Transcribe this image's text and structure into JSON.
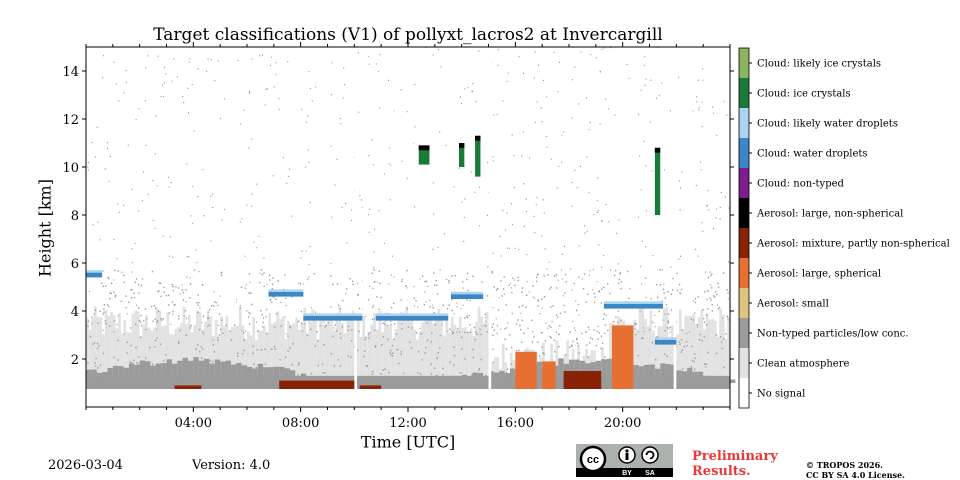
{
  "chart_data": {
    "type": "heatmap",
    "title": "Target classifications (V1) of pollyxt_lacros2 at Invercargill",
    "xlabel": "Time [UTC]",
    "ylabel": "Height [km]",
    "xlim_hours": [
      0,
      24
    ],
    "ylim_km": [
      0,
      15
    ],
    "x_ticks": [
      {
        "hour": 4,
        "label": "04:00"
      },
      {
        "hour": 8,
        "label": "08:00"
      },
      {
        "hour": 12,
        "label": "12:00"
      },
      {
        "hour": 16,
        "label": "16:00"
      },
      {
        "hour": 20,
        "label": "20:00"
      }
    ],
    "y_ticks": [
      {
        "value": 2,
        "label": "2"
      },
      {
        "value": 4,
        "label": "4"
      },
      {
        "value": 6,
        "label": "6"
      },
      {
        "value": 8,
        "label": "8"
      },
      {
        "value": 10,
        "label": "10"
      },
      {
        "value": 12,
        "label": "12"
      },
      {
        "value": 14,
        "label": "14"
      }
    ],
    "classes": [
      {
        "id": 11,
        "label": "Cloud: likely ice crystals",
        "color": "#8ab45f"
      },
      {
        "id": 10,
        "label": "Cloud: ice crystals",
        "color": "#1a7a3a"
      },
      {
        "id": 9,
        "label": "Cloud: likely water droplets",
        "color": "#acd2ee"
      },
      {
        "id": 8,
        "label": "Cloud: water droplets",
        "color": "#3b86c6"
      },
      {
        "id": 7,
        "label": "Cloud: non-typed",
        "color": "#7d1c8c"
      },
      {
        "id": 6,
        "label": "Aerosol: large, non-spherical",
        "color": "#000000"
      },
      {
        "id": 5,
        "label": "Aerosol: mixture, partly non-spherical",
        "color": "#8a2206"
      },
      {
        "id": 4,
        "label": "Aerosol: large, spherical",
        "color": "#e86f32"
      },
      {
        "id": 3,
        "label": "Aerosol: small",
        "color": "#dcc57e"
      },
      {
        "id": 2,
        "label": "Non-typed particles/low conc.",
        "color": "#9b9b9b"
      },
      {
        "id": 1,
        "label": "Clean atmosphere",
        "color": "#e2e2e2"
      },
      {
        "id": 0,
        "label": "No signal",
        "color": "#ffffff"
      }
    ],
    "regions": {
      "non_typed_base": {
        "from_hour": 0,
        "to_hour": 24,
        "bottom_km": 0.75,
        "top_km": 1.3
      },
      "clean_layer_top_km": 3.5,
      "water_cloud_tops": [
        {
          "from_hour": 0,
          "to_hour": 0.6,
          "height_km": 5.5
        },
        {
          "from_hour": 6.8,
          "to_hour": 8.1,
          "height_km": 4.7
        },
        {
          "from_hour": 8.1,
          "to_hour": 10.3,
          "height_km": 3.7
        },
        {
          "from_hour": 10.8,
          "to_hour": 13.5,
          "height_km": 3.7
        },
        {
          "from_hour": 13.6,
          "to_hour": 14.8,
          "height_km": 4.6
        },
        {
          "from_hour": 19.3,
          "to_hour": 21.5,
          "height_km": 4.2
        },
        {
          "from_hour": 21.2,
          "to_hour": 22.0,
          "height_km": 2.7
        }
      ],
      "ice_clouds": [
        {
          "from_hour": 12.4,
          "to_hour": 12.8,
          "bottom_km": 10.1,
          "top_km": 10.9
        },
        {
          "from_hour": 13.9,
          "to_hour": 14.1,
          "bottom_km": 10.0,
          "top_km": 11.0
        },
        {
          "from_hour": 14.5,
          "to_hour": 14.7,
          "bottom_km": 9.6,
          "top_km": 11.3
        },
        {
          "from_hour": 21.2,
          "to_hour": 21.4,
          "bottom_km": 8.0,
          "top_km": 10.8
        }
      ],
      "mixture_layers": [
        {
          "from_hour": 3.3,
          "to_hour": 4.3,
          "bottom_km": 0.75,
          "top_km": 0.9
        },
        {
          "from_hour": 7.2,
          "to_hour": 10.0,
          "bottom_km": 0.75,
          "top_km": 1.1
        },
        {
          "from_hour": 10.2,
          "to_hour": 11.0,
          "bottom_km": 0.75,
          "top_km": 0.9
        },
        {
          "from_hour": 17.8,
          "to_hour": 19.2,
          "bottom_km": 0.75,
          "top_km": 1.5
        }
      ],
      "large_spherical": [
        {
          "from_hour": 16.0,
          "to_hour": 16.8,
          "bottom_km": 0.75,
          "top_km": 2.3
        },
        {
          "from_hour": 17.0,
          "to_hour": 17.5,
          "bottom_km": 0.75,
          "top_km": 1.9
        },
        {
          "from_hour": 19.6,
          "to_hour": 20.4,
          "bottom_km": 0.75,
          "top_km": 3.4
        }
      ]
    }
  },
  "footer": {
    "date": "2026-03-04",
    "version": "Version: 4.0",
    "preliminary_line1": "Preliminary",
    "preliminary_line2": "Results.",
    "copyright_line1": "© TROPOS 2026.",
    "copyright_line2": "CC BY SA 4.0 License.",
    "license_badge": {
      "cc": "cc",
      "by": "BY",
      "sa": "SA"
    }
  }
}
